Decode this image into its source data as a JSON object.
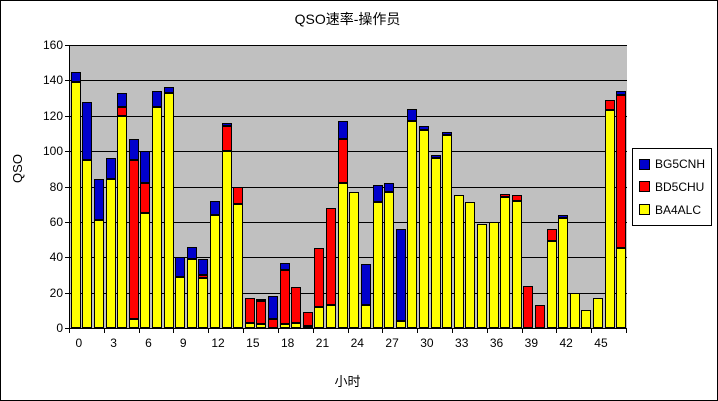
{
  "title": "QSO速率-操作员",
  "x_axis_label": "小时",
  "y_axis_label": "QSO",
  "colors": {
    "plot_background": "#C0C0C0",
    "chart_background": "#FFFFFF",
    "gridline": "#000000",
    "BG5CNH": "#0000CC",
    "BD5CHU": "#FF0000",
    "BA4ALC": "#FFFF00"
  },
  "chart_data": {
    "type": "bar",
    "stacked": true,
    "title": "QSO速率-操作员",
    "xlabel": "小时",
    "ylabel": "QSO",
    "ylim": [
      0,
      160
    ],
    "ytick_step": 20,
    "y_ticks": [
      0,
      20,
      40,
      60,
      80,
      100,
      120,
      140,
      160
    ],
    "x_tick_labels": [
      "0",
      "3",
      "6",
      "9",
      "12",
      "15",
      "18",
      "21",
      "24",
      "27",
      "30",
      "33",
      "36",
      "39",
      "42",
      "45"
    ],
    "categories": [
      0,
      1,
      2,
      3,
      4,
      5,
      6,
      7,
      8,
      9,
      10,
      11,
      12,
      13,
      14,
      15,
      16,
      17,
      18,
      19,
      20,
      21,
      22,
      23,
      24,
      25,
      26,
      27,
      28,
      29,
      30,
      31,
      32,
      33,
      34,
      35,
      36,
      37,
      38,
      39,
      40,
      41,
      42,
      43,
      44,
      45,
      46,
      47
    ],
    "grid": true,
    "legend_position": "right",
    "stack_order_bottom_to_top": [
      "BA4ALC",
      "BD5CHU",
      "BG5CNH"
    ],
    "series": [
      {
        "name": "BG5CNH",
        "color": "#0000CC",
        "values": [
          6,
          33,
          23,
          12,
          8,
          12,
          18,
          9,
          3,
          11,
          7,
          9,
          8,
          2,
          0,
          0,
          1,
          13,
          4,
          0,
          0,
          0,
          0,
          10,
          0,
          23,
          10,
          5,
          52,
          7,
          2,
          2,
          2,
          0,
          0,
          0,
          0,
          0,
          0,
          0,
          0,
          0,
          2,
          0,
          0,
          0,
          0,
          2
        ]
      },
      {
        "name": "BD5CHU",
        "color": "#FF0000",
        "values": [
          0,
          0,
          0,
          0,
          5,
          90,
          17,
          0,
          0,
          0,
          0,
          2,
          0,
          14,
          10,
          14,
          13,
          5,
          31,
          20,
          8,
          33,
          55,
          25,
          0,
          0,
          0,
          0,
          0,
          0,
          0,
          0,
          0,
          0,
          0,
          0,
          0,
          2,
          3,
          24,
          13,
          7,
          0,
          0,
          0,
          0,
          6,
          87
        ]
      },
      {
        "name": "BA4ALC",
        "color": "#FFFF00",
        "values": [
          139,
          95,
          61,
          84,
          120,
          5,
          65,
          125,
          133,
          29,
          39,
          28,
          64,
          100,
          70,
          3,
          2,
          0,
          2,
          3,
          1,
          12,
          13,
          82,
          77,
          13,
          71,
          77,
          4,
          117,
          112,
          96,
          109,
          75,
          71,
          59,
          60,
          74,
          72,
          0,
          0,
          49,
          62,
          20,
          10,
          17,
          123,
          45
        ]
      }
    ]
  },
  "legend": {
    "items": [
      {
        "label": "BG5CNH",
        "color": "#0000CC"
      },
      {
        "label": "BD5CHU",
        "color": "#FF0000"
      },
      {
        "label": "BA4ALC",
        "color": "#FFFF00"
      }
    ]
  }
}
